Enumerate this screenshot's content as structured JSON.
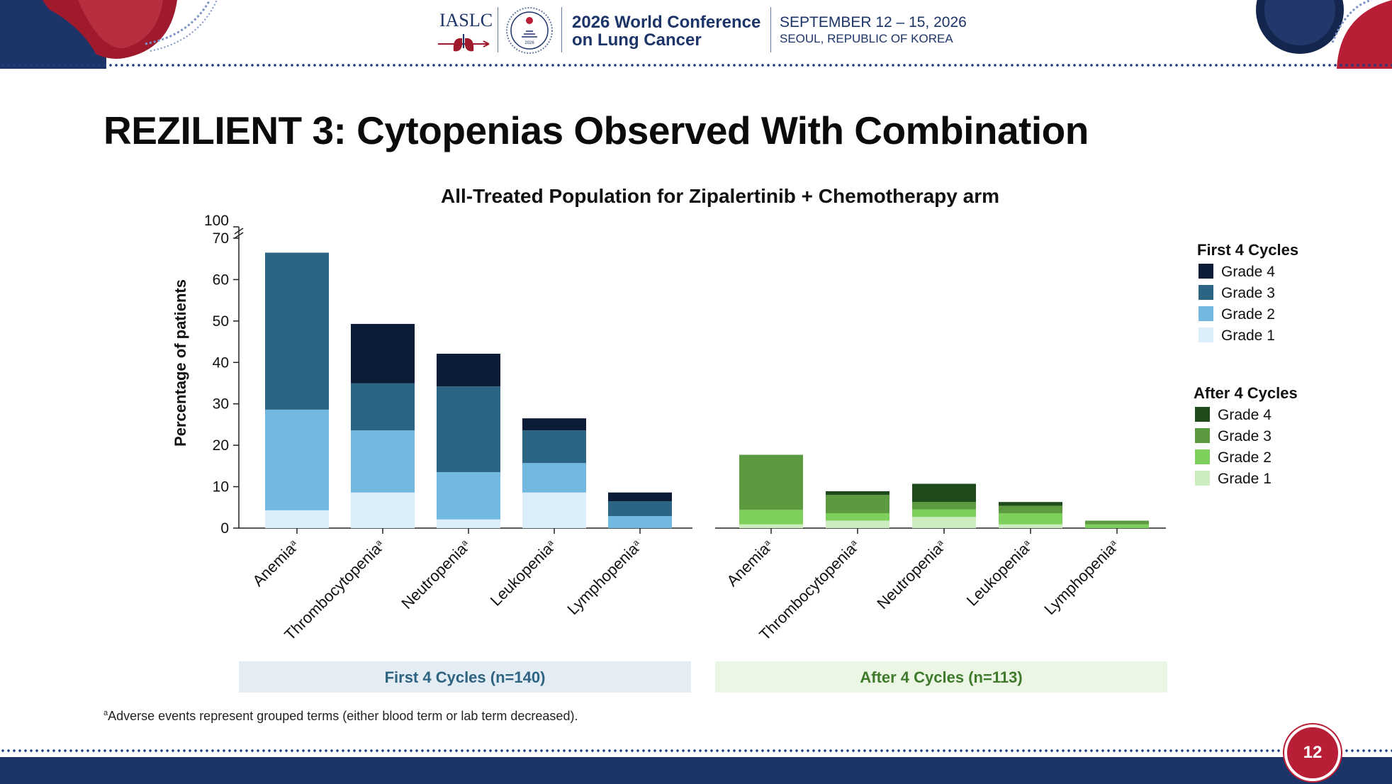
{
  "header": {
    "org": "IASLC",
    "conference_line1": "2026 World Conference",
    "conference_line2": "on Lung Cancer",
    "dates": "SEPTEMBER 12 – 15, 2026",
    "location": "SEOUL, REPUBLIC OF KOREA",
    "emblem_text": "2026"
  },
  "slide": {
    "title": "REZILIENT 3: Cytopenias Observed With Combination",
    "page_number": "12",
    "footnote_sup": "a",
    "footnote": "Adverse events represent grouped terms (either blood term or lab term decreased)."
  },
  "colors": {
    "navy": "#1c3468",
    "red": "#b81f36",
    "first_panel_bg": "#e3edf3",
    "after_panel_bg": "#ebf6e4",
    "first_panel_text": "#2e6481",
    "after_panel_text": "#3f7a2d"
  },
  "chart_data": {
    "type": "bar",
    "stacked": true,
    "title": "All-Treated Population for Zipalertinib + Chemotherapy arm",
    "ylabel": "Percentage of patients",
    "ylim": [
      0,
      70
    ],
    "axis_break": true,
    "yticks": [
      "0",
      "10",
      "20",
      "30",
      "40",
      "50",
      "60",
      "70",
      "100"
    ],
    "legend_position": "right",
    "categories": [
      "Anemia",
      "Thrombocytopenia",
      "Neutropenia",
      "Leukopenia",
      "Lymphopenia"
    ],
    "category_superscript": "a",
    "panels": [
      {
        "label": "First 4 Cycles (n=140)",
        "legend_title": "First 4 Cycles",
        "series": [
          {
            "name": "Grade 1",
            "color": "#dbeef9",
            "values": [
              4.3,
              8.6,
              2.1,
              8.6,
              0.0
            ]
          },
          {
            "name": "Grade 2",
            "color": "#72b9e2",
            "values": [
              24.3,
              15.0,
              11.4,
              7.1,
              2.9
            ]
          },
          {
            "name": "Grade 3",
            "color": "#2c6484",
            "values": [
              37.9,
              11.4,
              20.7,
              7.9,
              3.6
            ]
          },
          {
            "name": "Grade 4",
            "color": "#0c1b36",
            "values": [
              0.0,
              14.3,
              7.9,
              2.9,
              2.1
            ]
          }
        ]
      },
      {
        "label": "After 4 Cycles (n=113)",
        "legend_title": "After 4 Cycles",
        "series": [
          {
            "name": "Grade 1",
            "color": "#cdedbe",
            "values": [
              0.9,
              1.8,
              2.7,
              0.9,
              0.0
            ]
          },
          {
            "name": "Grade 2",
            "color": "#7dd05c",
            "values": [
              3.5,
              1.8,
              1.8,
              2.7,
              0.9
            ]
          },
          {
            "name": "Grade 3",
            "color": "#5b9a3f",
            "values": [
              13.3,
              4.4,
              1.8,
              1.8,
              0.9
            ]
          },
          {
            "name": "Grade 4",
            "color": "#1f4a1c",
            "values": [
              0.0,
              0.9,
              4.4,
              0.9,
              0.0
            ]
          }
        ]
      }
    ]
  }
}
